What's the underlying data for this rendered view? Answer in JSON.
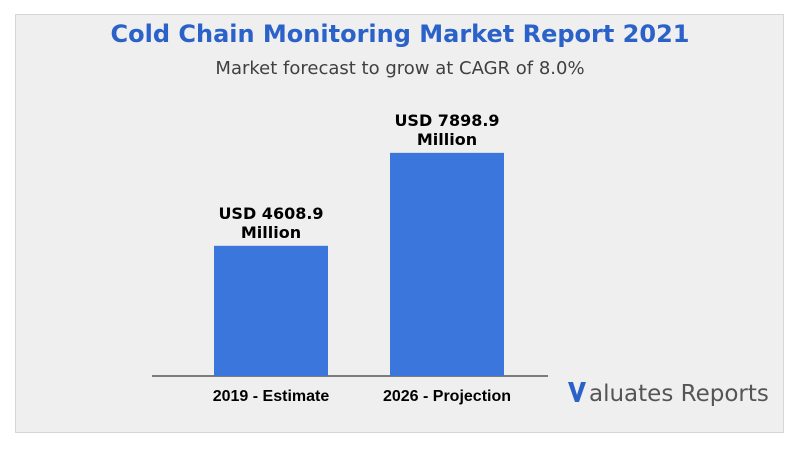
{
  "header": {
    "title": "Cold Chain Monitoring Market Report 2021",
    "subtitle": "Market forecast to grow at CAGR of 8.0%"
  },
  "colors": {
    "title": "#2b62c9",
    "bar": "#3b76dc",
    "background": "#efefef",
    "logo_mark": "#2b62c9"
  },
  "logo": {
    "text": "aluates Reports",
    "icon": "v-logo-icon"
  },
  "chart_data": {
    "type": "bar",
    "title": "Cold Chain Monitoring Market Report 2021",
    "subtitle": "Market forecast to grow at CAGR of 8.0%",
    "categories": [
      "2019 - Estimate",
      "2026 - Projection"
    ],
    "values": [
      4608.9,
      7898.9
    ],
    "data_labels": [
      [
        "USD 4608.9",
        "Million"
      ],
      [
        "USD 7898.9",
        "Million"
      ]
    ],
    "xlabel": "",
    "ylabel": "",
    "ylim": [
      0,
      8850
    ],
    "grid": false,
    "legend": "none"
  }
}
